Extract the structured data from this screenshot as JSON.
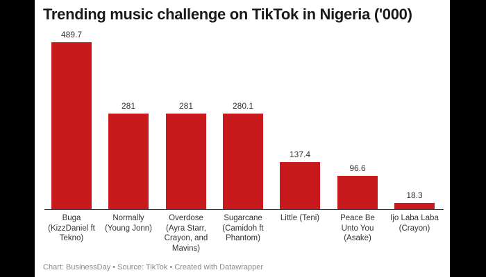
{
  "title": "Trending music challenge on TikTok in Nigeria ('000)",
  "footer": "Chart: BusinessDay • Source: TikTok • Created with Datawrapper",
  "colors": {
    "bar": "#c8191c",
    "background": "#ffffff",
    "frame": "#000000"
  },
  "bars": [
    {
      "label": "Buga (KizzDaniel ft Tekno)",
      "value_label": "489.7",
      "value": 489.7
    },
    {
      "label": "Normally (Young Jonn)",
      "value_label": "281",
      "value": 281
    },
    {
      "label": "Overdose (Ayra Starr, Crayon, and Mavins)",
      "value_label": "281",
      "value": 281
    },
    {
      "label": "Sugarcane (Camidoh ft Phantom)",
      "value_label": "280.1",
      "value": 280.1
    },
    {
      "label": "Little (Teni)",
      "value_label": "137.4",
      "value": 137.4
    },
    {
      "label": "Peace Be Unto You (Asake)",
      "value_label": "96.6",
      "value": 96.6
    },
    {
      "label": "Ijo Laba Laba (Crayon)",
      "value_label": "18.3",
      "value": 18.3
    }
  ],
  "chart_data": {
    "type": "bar",
    "title": "Trending music challenge on TikTok in Nigeria ('000)",
    "categories": [
      "Buga (KizzDaniel ft Tekno)",
      "Normally (Young Jonn)",
      "Overdose (Ayra Starr, Crayon, and Mavins)",
      "Sugarcane (Camidoh ft Phantom)",
      "Little (Teni)",
      "Peace Be Unto You (Asake)",
      "Ijo Laba Laba (Crayon)"
    ],
    "values": [
      489.7,
      281,
      281,
      280.1,
      137.4,
      96.6,
      18.3
    ],
    "xlabel": "",
    "ylabel": "",
    "ylim": [
      0,
      489.7
    ],
    "grid": false,
    "legend": null,
    "data_labels": true,
    "source": "Chart: BusinessDay • Source: TikTok • Created with Datawrapper"
  }
}
